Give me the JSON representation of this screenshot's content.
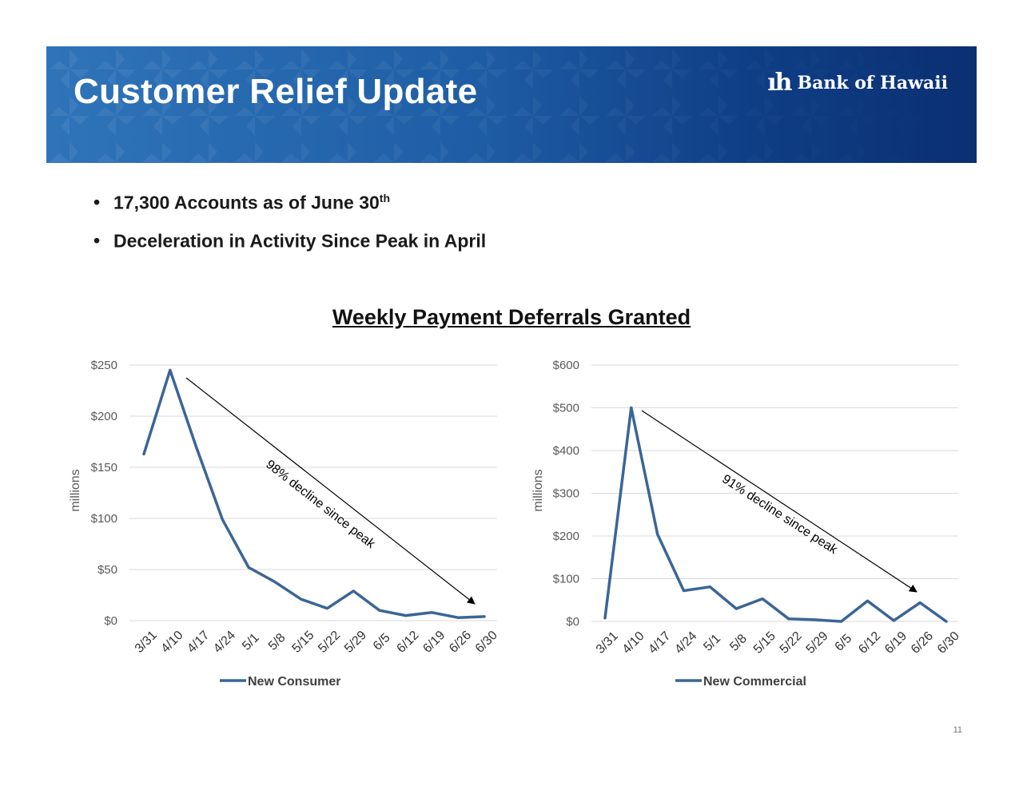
{
  "header": {
    "title": "Customer Relief Update",
    "logo_text": "Bank of Hawaii"
  },
  "bullets": [
    {
      "text": "17,300 Accounts as of June 30",
      "sup": "th"
    },
    {
      "text": "Deceleration in Activity Since Peak in April",
      "sup": ""
    }
  ],
  "section_title": "Weekly Payment Deferrals Granted",
  "page_number": "11",
  "chart_data": [
    {
      "type": "line",
      "ylabel": "millions",
      "ylim": [
        0,
        250
      ],
      "y_ticks": [
        0,
        50,
        100,
        150,
        200,
        250
      ],
      "y_tick_labels": [
        "$0",
        "$50",
        "$100",
        "$150",
        "$200",
        "$250"
      ],
      "categories": [
        "3/31",
        "4/10",
        "4/17",
        "4/24",
        "5/1",
        "5/8",
        "5/15",
        "5/22",
        "5/29",
        "6/5",
        "6/12",
        "6/19",
        "6/26",
        "6/30"
      ],
      "series": [
        {
          "name": "New Consumer",
          "color": "#3b6596",
          "values": [
            163,
            245,
            170,
            99,
            52,
            38,
            21,
            12,
            29,
            10,
            5,
            8,
            3,
            4
          ]
        }
      ],
      "annotation": "98% decline since peak",
      "legend_position": "bottom",
      "grid": true
    },
    {
      "type": "line",
      "ylabel": "millions",
      "ylim": [
        0,
        600
      ],
      "y_ticks": [
        0,
        100,
        200,
        300,
        400,
        500,
        600
      ],
      "y_tick_labels": [
        "$0",
        "$100",
        "$200",
        "$300",
        "$400",
        "$500",
        "$600"
      ],
      "categories": [
        "3/31",
        "4/10",
        "4/17",
        "4/24",
        "5/1",
        "5/8",
        "5/15",
        "5/22",
        "5/29",
        "6/5",
        "6/12",
        "6/19",
        "6/26",
        "6/30"
      ],
      "series": [
        {
          "name": "New Commercial",
          "color": "#3b6596",
          "values": [
            8,
            500,
            204,
            72,
            81,
            30,
            53,
            6,
            4,
            0,
            48,
            2,
            44,
            0
          ]
        }
      ],
      "annotation": "91% decline since peak",
      "legend_position": "bottom",
      "grid": true
    }
  ]
}
